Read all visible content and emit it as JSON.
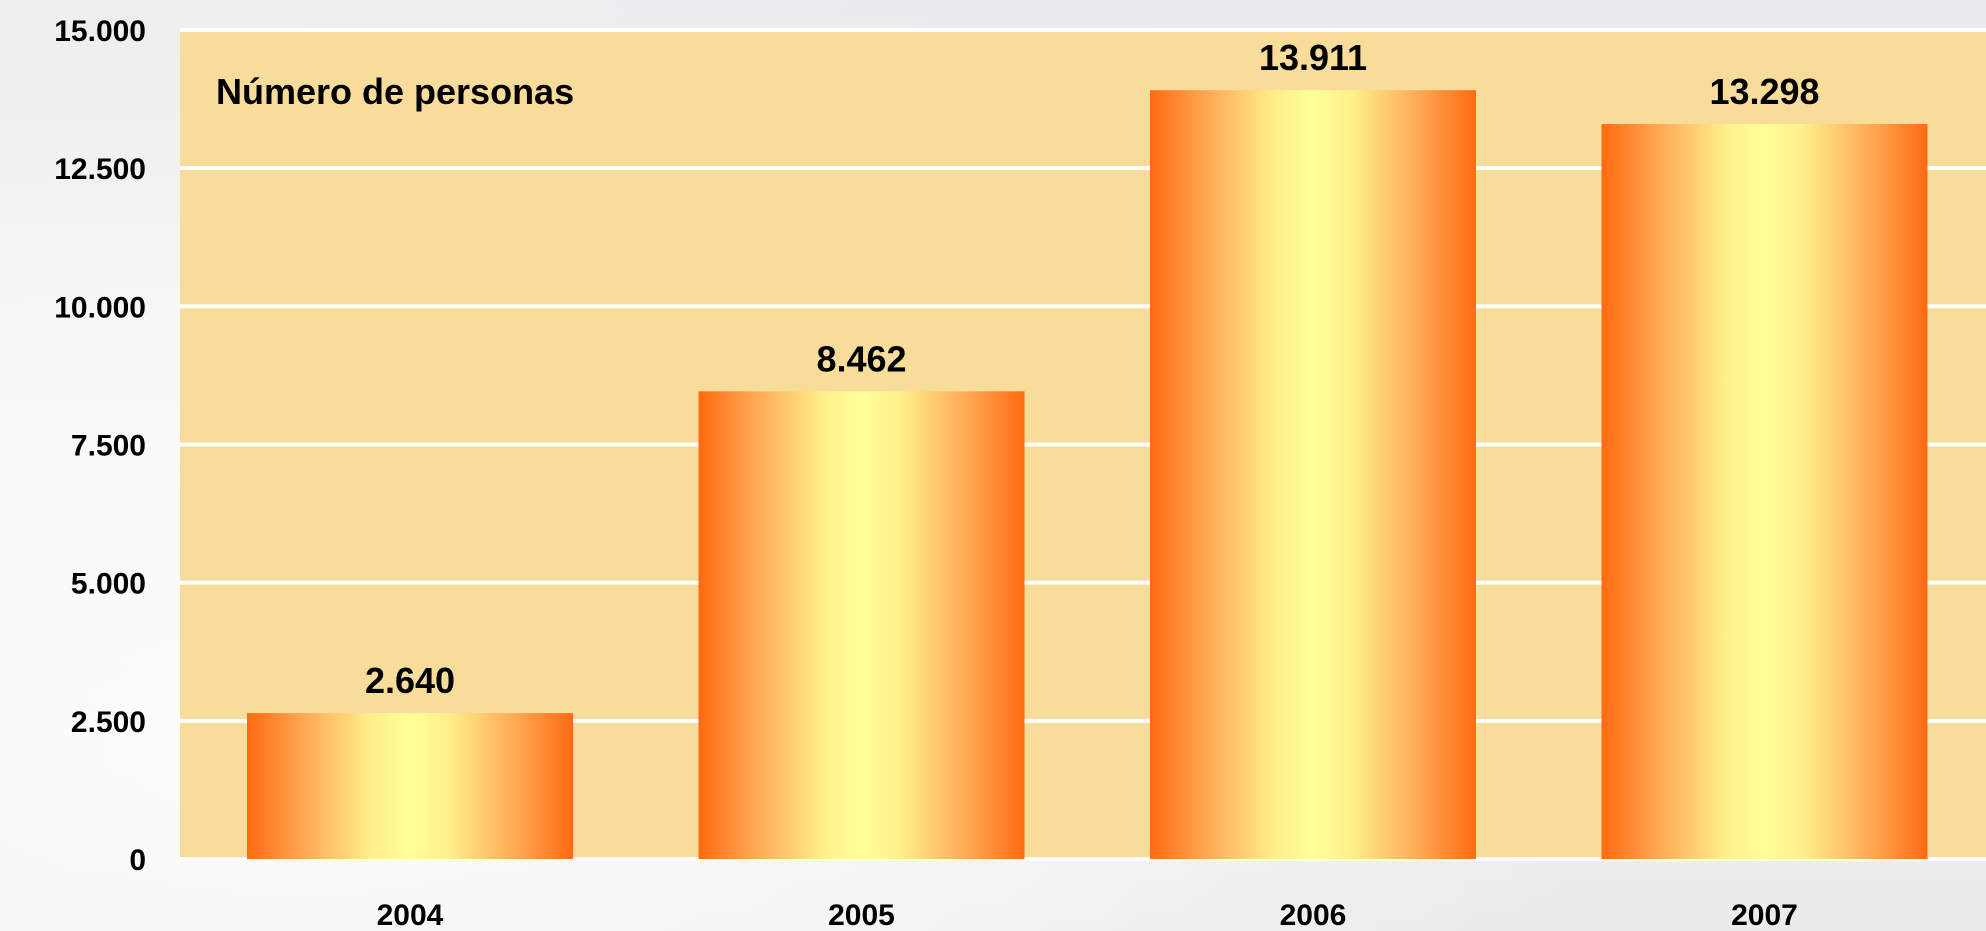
{
  "chart_data": {
    "type": "bar",
    "title": "",
    "annotation": "Número de personas",
    "categories": [
      "2004",
      "2005",
      "2006",
      "2007"
    ],
    "values": [
      2640,
      8462,
      13911,
      13298
    ],
    "value_labels": [
      "2.640",
      "8.462",
      "13.911",
      "13.298"
    ],
    "ylim": [
      0,
      15000
    ],
    "y_ticks": [
      0,
      2500,
      5000,
      7500,
      10000,
      12500,
      15000
    ],
    "y_tick_labels": [
      "0",
      "2.500",
      "5.000",
      "7.500",
      "10.000",
      "12.500",
      "15.000"
    ],
    "xlabel": "",
    "ylabel": "",
    "grid": true,
    "legend": "none",
    "colors": {
      "plot_background": "#f8dc9a",
      "gridline": "#ffffff",
      "bar_edge": "#ff6a12",
      "bar_center": "#ffff99"
    }
  }
}
